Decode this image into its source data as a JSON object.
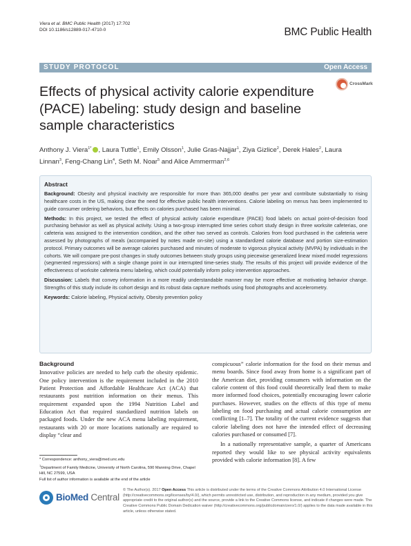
{
  "header": {
    "authors_journal": "Viera et al. BMC Public Health",
    "year_vol": " (2017) 17:702",
    "doi": "DOI 10.1186/s12889-017-4710-0",
    "journal": "BMC Public Health"
  },
  "banner": {
    "type": "STUDY PROTOCOL",
    "access": "Open Access"
  },
  "crossmark": "CrossMark",
  "title": "Effects of physical activity calorie expenditure (PACE) labeling: study design and baseline sample characteristics",
  "authors": [
    {
      "name": "Anthony J. Viera",
      "aff": "1*",
      "orcid": true
    },
    {
      "name": "Laura Tuttle",
      "aff": "1"
    },
    {
      "name": "Emily Olsson",
      "aff": "1"
    },
    {
      "name": "Julie Gras-Najjar",
      "aff": "1"
    },
    {
      "name": "Ziya Gizlice",
      "aff": "2"
    },
    {
      "name": "Derek Hales",
      "aff": "2"
    },
    {
      "name": "Laura Linnan",
      "aff": "3"
    },
    {
      "name": "Feng-Chang Lin",
      "aff": "4"
    },
    {
      "name": "Seth M. Noar",
      "aff": "5"
    },
    {
      "name": "Alice Ammerman",
      "aff": "2,6"
    }
  ],
  "abstract": {
    "heading": "Abstract",
    "background_label": "Background:",
    "background": "Obesity and physical inactivity are responsible for more than 365,000 deaths per year and contribute substantially to rising healthcare costs in the US, making clear the need for effective public health interventions. Calorie labeling on menus has been implemented to guide consumer ordering behaviors, but effects on calories purchased has been minimal.",
    "methods_label": "Methods:",
    "methods": "In this project, we tested the effect of physical activity calorie expenditure (PACE) food labels on actual point-of-decision food purchasing behavior as well as physical activity. Using a two-group interrupted time series cohort study design in three worksite cafeterias, one cafeteria was assigned to the intervention condition, and the other two served as controls. Calories from food purchased in the cafeteria were assessed by photographs of meals (accompanied by notes made on-site) using a standardized calorie database and portion size-estimation protocol. Primary outcomes will be average calories purchased and minutes of moderate to vigorous physical activity (MVPA) by individuals in the cohorts. We will compare pre-post changes in study outcomes between study groups using piecewise generalized linear mixed model regressions (segmented regressions) with a single change point in our interrupted time-series study. The results of this project will provide evidence of the effectiveness of worksite cafeteria menu labeling, which could potentially inform policy intervention approaches.",
    "discussion_label": "Discussion:",
    "discussion": "Labels that convey information in a more readily understandable manner may be more effective at motivating behavior change. Strengths of this study include its cohort design and its robust data capture methods using food photographs and accelerometry.",
    "keywords_label": "Keywords:",
    "keywords": "Calorie labeling, Physical activity, Obesity prevention policy"
  },
  "body": {
    "section_heading": "Background",
    "left_para": "Innovative policies are needed to help curb the obesity epidemic. One policy intervention is the requirement included in the 2010 Patient Protection and Affordable Healthcare Act (ACA) that restaurants post nutrition information on their menus. This requirement expanded upon the 1994 Nutrition Label and Education Act that required standardized nutrition labels on packaged foods. Under the new ACA menu labeling requirement, restaurants with 20 or more locations nationally are required to display “clear and",
    "right_para1": "conspicuous” calorie information for the food on their menus and menu boards. Since food away from home is a significant part of the American diet, providing consumers with information on the calorie content of this food could theoretically lead them to make more informed food choices, potentially encouraging lower calorie purchases. However, studies on the effects of this type of menu labeling on food purchasing and actual calorie consumption are conflicting [1–7]. The totality of the current evidence suggests that calorie labeling does not have the intended effect of decreasing calories purchased or consumed [7].",
    "right_para2": "In a nationally representative sample, a quarter of Americans reported they would like to see physical activity equivalents provided with calorie information [8]. A few"
  },
  "footnotes": {
    "correspondence": "* Correspondence: anthony_viera@med.unc.edu",
    "aff1_num": "1",
    "aff1": "Department of Family Medicine, University of North Carolina, 590 Manning Drive, Chapel Hill, NC 27599, USA",
    "more": "Full list of author information is available at the end of the article"
  },
  "publisher": {
    "name_a": "BioMed",
    "name_b": " Central"
  },
  "license": {
    "copyright": "© The Author(s). 2017 ",
    "oa": "Open Access",
    "text": " This article is distributed under the terms of the Creative Commons Attribution 4.0 International License (http://creativecommons.org/licenses/by/4.0/), which permits unrestricted use, distribution, and reproduction in any medium, provided you give appropriate credit to the original author(s) and the source, provide a link to the Creative Commons license, and indicate if changes were made. The Creative Commons Public Domain Dedication waiver (http://creativecommons.org/publicdomain/zero/1.0/) applies to the data made available in this article, unless otherwise stated."
  },
  "colors": {
    "banner": "#8faabc",
    "abstract_bg": "#f0f5f9",
    "logo_blue": "#2a7ab8"
  }
}
